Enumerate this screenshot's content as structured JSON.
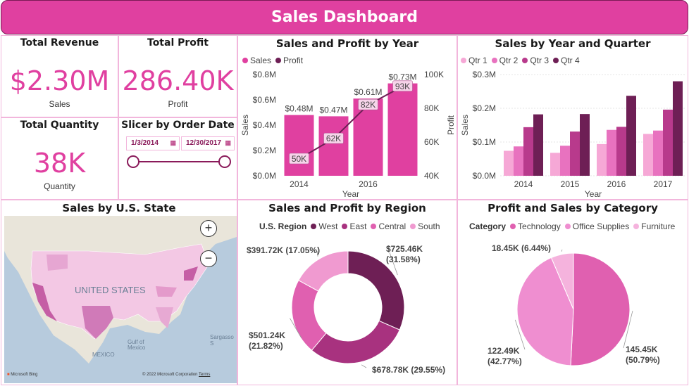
{
  "header": {
    "title": "Sales Dashboard"
  },
  "kpis": {
    "revenue": {
      "title": "Total Revenue",
      "value": "$2.30M",
      "sub": "Sales"
    },
    "profit": {
      "title": "Total Profit",
      "value": "286.40K",
      "sub": "Profit"
    },
    "quantity": {
      "title": "Total Quantity",
      "value": "38K",
      "sub": "Quantity"
    }
  },
  "slicer": {
    "title": "Slicer by Order Date",
    "start": "1/3/2014",
    "end": "12/30/2017"
  },
  "map": {
    "title": "Sales by U.S. State",
    "country_label": "UNITED STATES",
    "labels": [
      "Gulf of",
      "Mexico",
      "MEXICO",
      "Sargasso S"
    ],
    "credit": "Microsoft Bing",
    "copyright": "© 2022 Microsoft Corporation",
    "terms": "Terms",
    "zoom_in": "+",
    "zoom_out": "−"
  },
  "colors": {
    "brand": "#e040a0",
    "sales": "#e040a0",
    "profit": "#6e1f55",
    "q1": "#f6a8d6",
    "q2": "#e872bf",
    "q3": "#b83a8c",
    "q4": "#6e1f55",
    "west": "#6e1f55",
    "east": "#a8327f",
    "central": "#e060b0",
    "south": "#f09ad0",
    "technology": "#e060b0",
    "office": "#ef8ed0",
    "furniture": "#f5b3dd"
  },
  "chart_data": [
    {
      "id": "sales_profit_year",
      "type": "bar",
      "title": "Sales and Profit by Year",
      "xlabel": "Year",
      "ylabel": "Sales",
      "y2label": "Profit",
      "categories": [
        "2014",
        "2016"
      ],
      "x": [
        2014,
        2015,
        2016,
        2017
      ],
      "series": [
        {
          "name": "Sales",
          "type": "bar",
          "values": [
            0.48,
            0.47,
            0.61,
            0.73
          ],
          "labels": [
            "$0.48M",
            "$0.47M",
            "$0.61M",
            "$0.73M"
          ]
        },
        {
          "name": "Profit",
          "type": "line",
          "axis": "right",
          "values": [
            50,
            62,
            82,
            93
          ],
          "labels": [
            "50K",
            "62K",
            "82K",
            "93K"
          ]
        }
      ],
      "ylim": [
        0,
        0.8
      ],
      "yticks": [
        "$0.0M",
        "$0.2M",
        "$0.4M",
        "$0.6M",
        "$0.8M"
      ],
      "y2lim": [
        40,
        100
      ],
      "y2ticks": [
        "40K",
        "60K",
        "80K",
        "100K"
      ],
      "legend": "top-left"
    },
    {
      "id": "sales_year_quarter",
      "type": "bar",
      "title": "Sales by Year and Quarter",
      "xlabel": "Year",
      "ylabel": "Sales",
      "categories": [
        "2014",
        "2015",
        "2016",
        "2017"
      ],
      "series": [
        {
          "name": "Qtr 1",
          "values": [
            0.074,
            0.068,
            0.094,
            0.124
          ]
        },
        {
          "name": "Qtr 2",
          "values": [
            0.087,
            0.089,
            0.136,
            0.134
          ]
        },
        {
          "name": "Qtr 3",
          "values": [
            0.144,
            0.131,
            0.145,
            0.196
          ]
        },
        {
          "name": "Qtr 4",
          "values": [
            0.182,
            0.183,
            0.237,
            0.28
          ]
        }
      ],
      "ylim": [
        0,
        0.3
      ],
      "yticks": [
        "$0.0M",
        "$0.1M",
        "$0.2M",
        "$0.3M"
      ],
      "legend": "top-left"
    },
    {
      "id": "region",
      "type": "pie",
      "title": "Sales and Profit by Region",
      "legend_title": "U.S. Region",
      "categories": [
        "West",
        "East",
        "Central",
        "South"
      ],
      "values": [
        725.46,
        678.78,
        501.24,
        391.72
      ],
      "labels": [
        [
          "$725.46K",
          "(31.58%)"
        ],
        [
          "$678.78K (29.55%)"
        ],
        [
          "$501.24K",
          "(21.82%)"
        ],
        [
          "$391.72K (17.05%)"
        ]
      ],
      "donut": true
    },
    {
      "id": "category",
      "type": "pie",
      "title": "Profit and Sales by Category",
      "legend_title": "Category",
      "categories": [
        "Technology",
        "Office Supplies",
        "Furniture"
      ],
      "values": [
        145.45,
        122.49,
        18.45
      ],
      "labels": [
        [
          "145.45K",
          "(50.79%)"
        ],
        [
          "122.49K",
          "(42.77%)"
        ],
        [
          "18.45K (6.44%)"
        ]
      ]
    }
  ]
}
